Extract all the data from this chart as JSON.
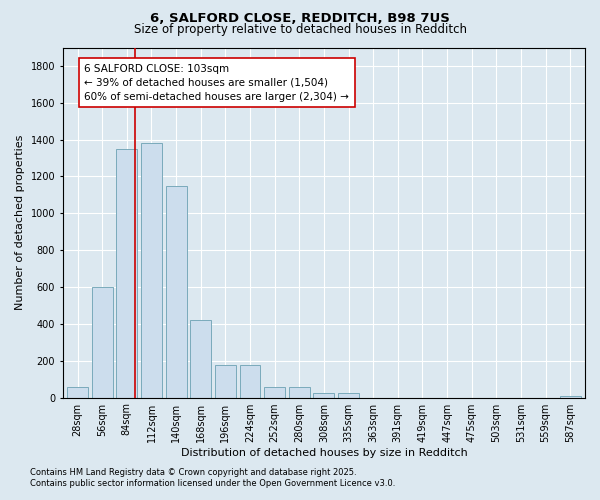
{
  "title1": "6, SALFORD CLOSE, REDDITCH, B98 7US",
  "title2": "Size of property relative to detached houses in Redditch",
  "xlabel": "Distribution of detached houses by size in Redditch",
  "ylabel": "Number of detached properties",
  "categories": [
    "28sqm",
    "56sqm",
    "84sqm",
    "112sqm",
    "140sqm",
    "168sqm",
    "196sqm",
    "224sqm",
    "252sqm",
    "280sqm",
    "308sqm",
    "335sqm",
    "363sqm",
    "391sqm",
    "419sqm",
    "447sqm",
    "475sqm",
    "503sqm",
    "531sqm",
    "559sqm",
    "587sqm"
  ],
  "values": [
    60,
    600,
    1350,
    1380,
    1150,
    420,
    175,
    175,
    60,
    60,
    25,
    25,
    0,
    0,
    0,
    0,
    0,
    0,
    0,
    0,
    10
  ],
  "bar_color": "#ccdded",
  "bar_edge_color": "#7aaabb",
  "vline_x_index": 2.35,
  "vline_color": "#cc0000",
  "annotation_text": "6 SALFORD CLOSE: 103sqm\n← 39% of detached houses are smaller (1,504)\n60% of semi-detached houses are larger (2,304) →",
  "annotation_box_facecolor": "#ffffff",
  "annotation_box_edgecolor": "#cc0000",
  "ylim": [
    0,
    1900
  ],
  "yticks": [
    0,
    200,
    400,
    600,
    800,
    1000,
    1200,
    1400,
    1600,
    1800
  ],
  "bg_color": "#dce8f0",
  "plot_bg": "#dce8f0",
  "footer1": "Contains HM Land Registry data © Crown copyright and database right 2025.",
  "footer2": "Contains public sector information licensed under the Open Government Licence v3.0.",
  "title_fontsize": 9.5,
  "subtitle_fontsize": 8.5,
  "axis_label_fontsize": 8,
  "tick_fontsize": 7,
  "annotation_fontsize": 7.5,
  "footer_fontsize": 6
}
